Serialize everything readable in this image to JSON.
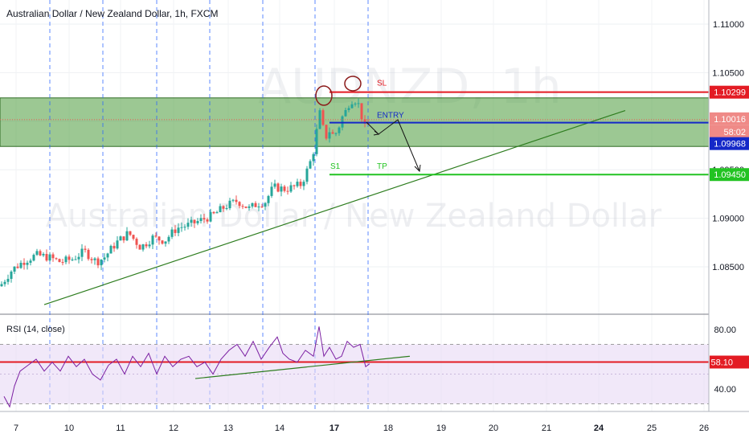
{
  "header": {
    "title": "Australian Dollar / New Zealand Dollar, 1h, FXCM",
    "watermark_symbol": "AUDNZD, 1h",
    "watermark_name": "Australian Dollar / New Zealand Dollar"
  },
  "rsi_panel": {
    "title": "RSI (14, close)",
    "ticks": [
      "80.00",
      "40.00"
    ],
    "current_label": "58.10"
  },
  "colors": {
    "bull": "#26a69a",
    "bear": "#ef5350",
    "zone_fill": "#4a9a3a",
    "sl": "#e31b23",
    "entry": "#1428c8",
    "tp": "#22c322",
    "trend": "#2e7d1f",
    "rsi_line": "#7b1fa2",
    "rsi_band": "#e8d8f5",
    "vline": "#2962ff"
  },
  "chart_data": {
    "type": "candlestick",
    "title": "Australian Dollar / New Zealand Dollar, 1h, FXCM",
    "y_ticks": [
      "1.11000",
      "1.10500",
      "1.10000",
      "1.09500",
      "1.09000",
      "1.08500"
    ],
    "x_ticks": [
      "7",
      "10",
      "11",
      "12",
      "13",
      "14",
      "15",
      "16",
      "17",
      "18",
      "19",
      "20",
      "21",
      "24",
      "25",
      "26"
    ],
    "price_tags": {
      "sl": "1.10299",
      "last": "1.10016",
      "countdown": "58:02",
      "bid": "1.09968",
      "tp": "1.09450"
    },
    "levels": {
      "sl": 1.10299,
      "entry": 1.09985,
      "tp": 1.0945,
      "zone_top": 1.1024,
      "zone_bottom": 1.0974,
      "current": 1.10016
    },
    "annotations": {
      "sl": "SL",
      "entry": "ENTRY",
      "s1": "S1",
      "tp": "TP"
    },
    "series": [
      {
        "name": "AUDNZD",
        "anchors": [
          [
            0,
            1.083
          ],
          [
            15,
            1.0847
          ],
          [
            30,
            1.0856
          ],
          [
            45,
            1.0862
          ],
          [
            60,
            1.086
          ],
          [
            75,
            1.0855
          ],
          [
            90,
            1.0858
          ],
          [
            105,
            1.0866
          ],
          [
            120,
            1.0855
          ],
          [
            130,
            1.086
          ],
          [
            145,
            1.0875
          ],
          [
            160,
            1.0885
          ],
          [
            175,
            1.087
          ],
          [
            190,
            1.088
          ],
          [
            205,
            1.0877
          ],
          [
            220,
            1.089
          ],
          [
            235,
            1.0893
          ],
          [
            250,
            1.0898
          ],
          [
            265,
            1.0903
          ],
          [
            280,
            1.0912
          ],
          [
            295,
            1.0918
          ],
          [
            310,
            1.091
          ],
          [
            320,
            1.0915
          ],
          [
            330,
            1.0917
          ],
          [
            340,
            1.0932
          ],
          [
            355,
            1.093
          ],
          [
            365,
            1.0932
          ],
          [
            375,
            1.0935
          ],
          [
            385,
            1.0955
          ],
          [
            392,
            1.0975
          ],
          [
            397,
            1.1012
          ],
          [
            401,
            1.0996
          ],
          [
            405,
            1.0983
          ],
          [
            410,
            1.099
          ],
          [
            415,
            1.0985
          ],
          [
            420,
            1.099
          ],
          [
            425,
            1.1003
          ],
          [
            430,
            1.101
          ],
          [
            435,
            1.102
          ],
          [
            440,
            1.1023
          ],
          [
            445,
            1.102
          ],
          [
            450,
            1.1005
          ],
          [
            455,
            1.099
          ],
          [
            460,
            1.1001
          ]
        ]
      }
    ],
    "rsi": {
      "current": 58.1,
      "band_upper": 70,
      "band_lower": 30,
      "anchors": [
        [
          5,
          35
        ],
        [
          12,
          28
        ],
        [
          18,
          42
        ],
        [
          25,
          52
        ],
        [
          35,
          56
        ],
        [
          45,
          60
        ],
        [
          55,
          52
        ],
        [
          65,
          58
        ],
        [
          75,
          52
        ],
        [
          85,
          62
        ],
        [
          95,
          55
        ],
        [
          105,
          60
        ],
        [
          115,
          50
        ],
        [
          125,
          46
        ],
        [
          135,
          56
        ],
        [
          145,
          60
        ],
        [
          155,
          50
        ],
        [
          165,
          62
        ],
        [
          175,
          55
        ],
        [
          185,
          64
        ],
        [
          195,
          50
        ],
        [
          205,
          62
        ],
        [
          215,
          55
        ],
        [
          225,
          60
        ],
        [
          235,
          62
        ],
        [
          245,
          55
        ],
        [
          255,
          58
        ],
        [
          265,
          50
        ],
        [
          275,
          60
        ],
        [
          285,
          66
        ],
        [
          295,
          70
        ],
        [
          305,
          62
        ],
        [
          315,
          72
        ],
        [
          325,
          60
        ],
        [
          335,
          68
        ],
        [
          345,
          75
        ],
        [
          352,
          64
        ],
        [
          360,
          60
        ],
        [
          370,
          58
        ],
        [
          380,
          66
        ],
        [
          390,
          62
        ],
        [
          397,
          82
        ],
        [
          403,
          62
        ],
        [
          410,
          68
        ],
        [
          418,
          60
        ],
        [
          425,
          62
        ],
        [
          432,
          72
        ],
        [
          440,
          68
        ],
        [
          448,
          70
        ],
        [
          455,
          55
        ],
        [
          460,
          57
        ]
      ]
    }
  }
}
